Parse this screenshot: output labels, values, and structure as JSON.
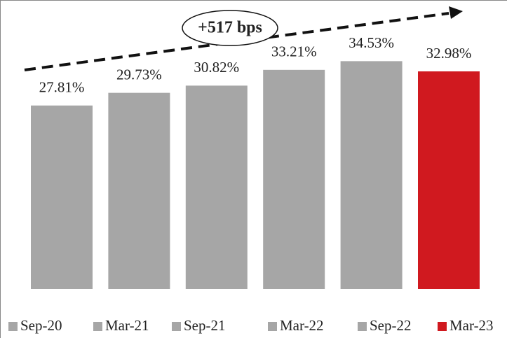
{
  "chart_data": {
    "type": "bar",
    "annotation": "+517 bps",
    "series": [
      {
        "name": "Sep-20",
        "color": "#a6a6a6",
        "values": [
          27.81
        ],
        "value_labels": [
          "27.81%"
        ]
      },
      {
        "name": "Mar-21",
        "color": "#a6a6a6",
        "values": [
          29.73
        ],
        "value_labels": [
          "29.73%"
        ]
      },
      {
        "name": "Sep-21",
        "color": "#a6a6a6",
        "values": [
          30.82
        ],
        "value_labels": [
          "30.82%"
        ]
      },
      {
        "name": "Mar-22",
        "color": "#a6a6a6",
        "values": [
          33.21
        ],
        "value_labels": [
          "33.21%"
        ]
      },
      {
        "name": "Sep-22",
        "color": "#a6a6a6",
        "values": [
          34.53
        ],
        "value_labels": [
          "34.53%"
        ]
      },
      {
        "name": "Mar-23",
        "color": "#d0191f",
        "values": [
          32.98
        ],
        "value_labels": [
          "32.98%"
        ]
      }
    ],
    "legend": "bottom"
  }
}
